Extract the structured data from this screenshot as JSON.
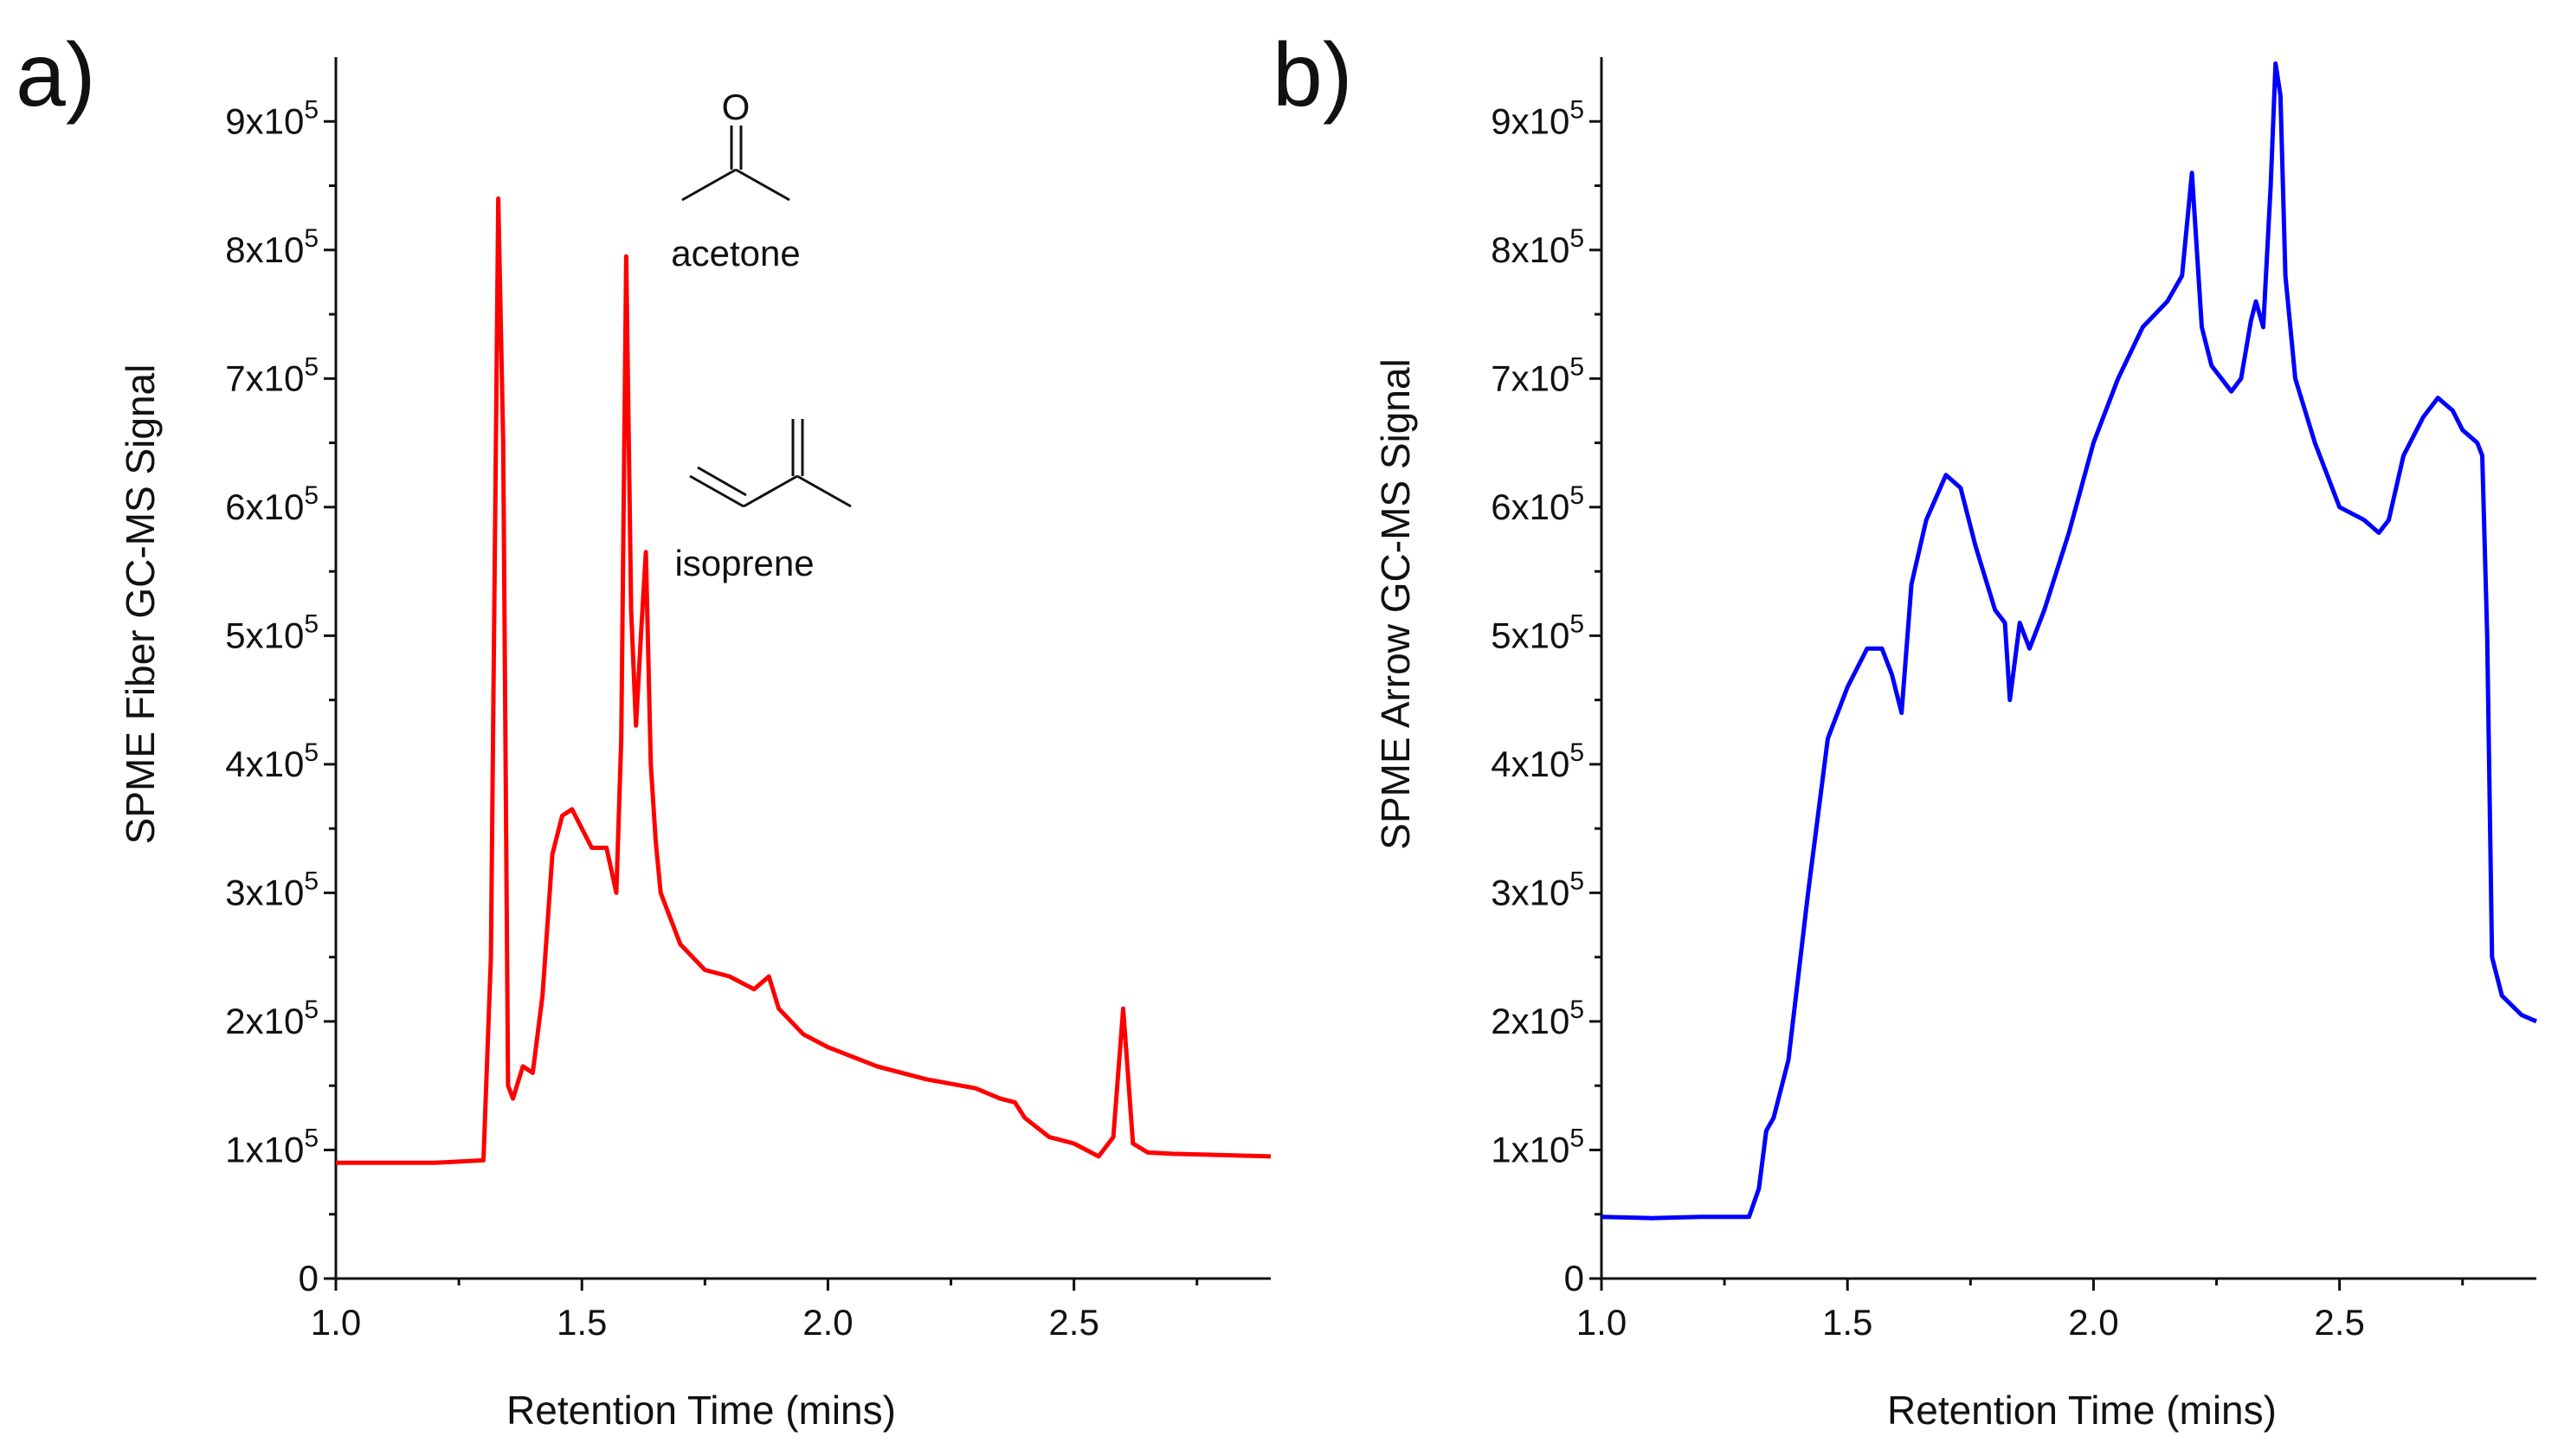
{
  "chart_data": [
    {
      "type": "line",
      "panel_label": "a)",
      "xlabel": "Retention Time (mins)",
      "ylabel": "SPME Fiber GC-MS Signal",
      "xlim": [
        1.0,
        2.9
      ],
      "ylim": [
        0,
        950000
      ],
      "x_ticks": [
        1.0,
        1.5,
        2.0,
        2.5
      ],
      "x_tick_labels": [
        "1.0",
        "1.5",
        "2.0",
        "2.5"
      ],
      "y_ticks": [
        0,
        100000,
        200000,
        300000,
        400000,
        500000,
        600000,
        700000,
        800000,
        900000
      ],
      "y_tick_labels": [
        {
          "mant": "0",
          "exp": ""
        },
        {
          "mant": "1x10",
          "exp": "5"
        },
        {
          "mant": "2x10",
          "exp": "5"
        },
        {
          "mant": "3x10",
          "exp": "5"
        },
        {
          "mant": "4x10",
          "exp": "5"
        },
        {
          "mant": "5x10",
          "exp": "5"
        },
        {
          "mant": "6x10",
          "exp": "5"
        },
        {
          "mant": "7x10",
          "exp": "5"
        },
        {
          "mant": "8x10",
          "exp": "5"
        },
        {
          "mant": "9x10",
          "exp": "5"
        }
      ],
      "annotations": [
        {
          "label": "acetone",
          "structure_atom": "O"
        },
        {
          "label": "isoprene"
        }
      ],
      "series": [
        {
          "name": "SPME Fiber",
          "color": "#ff0000",
          "x": [
            1.0,
            1.1,
            1.2,
            1.3,
            1.315,
            1.33,
            1.34,
            1.35,
            1.36,
            1.38,
            1.4,
            1.42,
            1.44,
            1.46,
            1.48,
            1.5,
            1.52,
            1.55,
            1.57,
            1.58,
            1.59,
            1.6,
            1.61,
            1.62,
            1.63,
            1.64,
            1.65,
            1.66,
            1.7,
            1.75,
            1.8,
            1.85,
            1.88,
            1.9,
            1.95,
            2.0,
            2.1,
            2.2,
            2.3,
            2.35,
            2.38,
            2.4,
            2.45,
            2.5,
            2.55,
            2.58,
            2.6,
            2.62,
            2.65,
            2.7,
            2.8,
            2.9
          ],
          "values": [
            90000,
            90000,
            90000,
            92000,
            250000,
            840000,
            650000,
            150000,
            140000,
            165000,
            160000,
            220000,
            330000,
            360000,
            365000,
            350000,
            335000,
            335000,
            300000,
            420000,
            795000,
            520000,
            430000,
            500000,
            565000,
            400000,
            340000,
            300000,
            260000,
            240000,
            235000,
            225000,
            235000,
            210000,
            190000,
            180000,
            165000,
            155000,
            148000,
            140000,
            137000,
            125000,
            110000,
            105000,
            95000,
            110000,
            210000,
            105000,
            98000,
            97000,
            96000,
            95000
          ]
        }
      ]
    },
    {
      "type": "line",
      "panel_label": "b)",
      "xlabel": "Retention Time (mins)",
      "ylabel": "SPME Arrow GC-MS Signal",
      "xlim": [
        1.0,
        2.9
      ],
      "ylim": [
        0,
        950000
      ],
      "x_ticks": [
        1.0,
        1.5,
        2.0,
        2.5
      ],
      "x_tick_labels": [
        "1.0",
        "1.5",
        "2.0",
        "2.5"
      ],
      "y_ticks": [
        0,
        100000,
        200000,
        300000,
        400000,
        500000,
        600000,
        700000,
        800000,
        900000
      ],
      "y_tick_labels": [
        {
          "mant": "0",
          "exp": ""
        },
        {
          "mant": "1x10",
          "exp": "5"
        },
        {
          "mant": "2x10",
          "exp": "5"
        },
        {
          "mant": "3x10",
          "exp": "5"
        },
        {
          "mant": "4x10",
          "exp": "5"
        },
        {
          "mant": "5x10",
          "exp": "5"
        },
        {
          "mant": "6x10",
          "exp": "5"
        },
        {
          "mant": "7x10",
          "exp": "5"
        },
        {
          "mant": "8x10",
          "exp": "5"
        },
        {
          "mant": "9x10",
          "exp": "5"
        }
      ],
      "series": [
        {
          "name": "SPME Arrow",
          "color": "#0000ff",
          "x": [
            1.0,
            1.1,
            1.2,
            1.3,
            1.32,
            1.335,
            1.35,
            1.38,
            1.42,
            1.46,
            1.5,
            1.54,
            1.57,
            1.59,
            1.61,
            1.63,
            1.66,
            1.7,
            1.73,
            1.76,
            1.8,
            1.82,
            1.83,
            1.85,
            1.87,
            1.9,
            1.95,
            2.0,
            2.05,
            2.1,
            2.15,
            2.18,
            2.2,
            2.22,
            2.24,
            2.26,
            2.28,
            2.3,
            2.32,
            2.33,
            2.345,
            2.36,
            2.37,
            2.38,
            2.39,
            2.41,
            2.45,
            2.5,
            2.55,
            2.58,
            2.6,
            2.63,
            2.67,
            2.7,
            2.73,
            2.75,
            2.78,
            2.79,
            2.8,
            2.81,
            2.83,
            2.87,
            2.9
          ],
          "values": [
            48000,
            47000,
            48000,
            48000,
            70000,
            115000,
            125000,
            170000,
            300000,
            420000,
            460000,
            490000,
            490000,
            470000,
            440000,
            540000,
            590000,
            625000,
            615000,
            570000,
            520000,
            510000,
            450000,
            510000,
            490000,
            520000,
            580000,
            650000,
            700000,
            740000,
            760000,
            780000,
            860000,
            740000,
            710000,
            700000,
            690000,
            700000,
            745000,
            760000,
            740000,
            850000,
            945000,
            920000,
            780000,
            700000,
            650000,
            600000,
            590000,
            580000,
            590000,
            640000,
            670000,
            685000,
            675000,
            660000,
            650000,
            640000,
            500000,
            250000,
            220000,
            205000,
            200000
          ]
        }
      ]
    }
  ]
}
